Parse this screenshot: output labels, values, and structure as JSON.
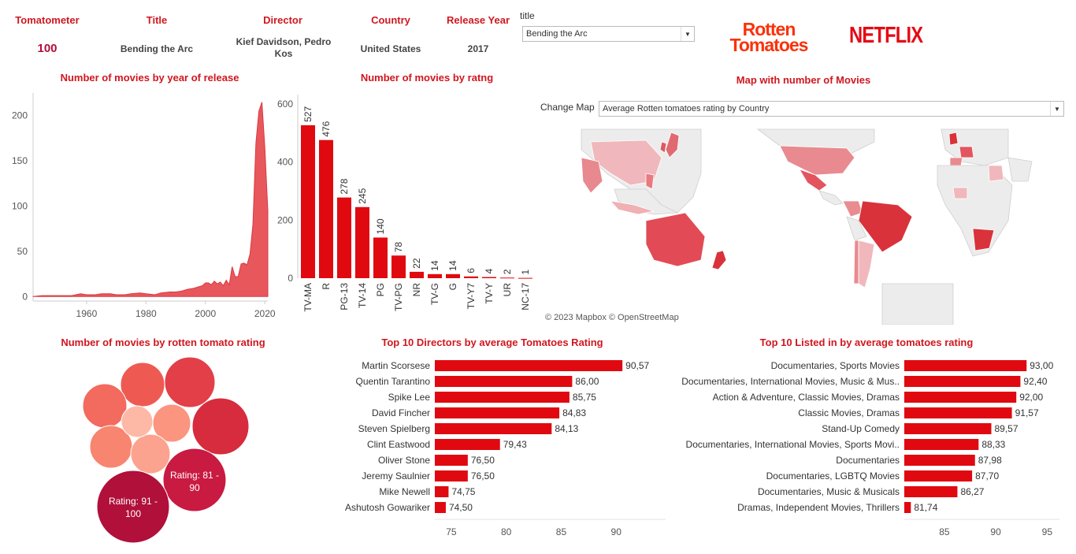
{
  "header": {
    "columns": [
      {
        "label": "Tomatometer",
        "value": "100"
      },
      {
        "label": "Title",
        "value": "Bending the Arc"
      },
      {
        "label": "Director",
        "value": "Kief Davidson, Pedro Kos"
      },
      {
        "label": "Country",
        "value": "United States"
      },
      {
        "label": "Release Year",
        "value": "2017"
      }
    ]
  },
  "title_filter": {
    "label": "title",
    "value": "Bending the Arc"
  },
  "logos": {
    "rotten_tomatoes": [
      "Rotten",
      "Tomatoes"
    ],
    "netflix": "NETFLIX"
  },
  "map": {
    "title": "Map with number of Movies",
    "change_label": "Change Map",
    "select_value": "Average Rotten tomatoes rating by Country",
    "credit": "© 2023 Mapbox © OpenStreetMap"
  },
  "colors": {
    "accent": "#d0171f",
    "bar": "#e00910",
    "area": "#e8575c",
    "map_low": "#f3c0c3",
    "map_high": "#d9323b"
  },
  "chart_data": [
    {
      "type": "area",
      "title": "Number of movies by year of release",
      "xlabel": "",
      "ylabel": "",
      "x_ticks": [
        1960,
        1980,
        2000,
        2020
      ],
      "y_ticks": [
        0,
        50,
        100,
        150,
        200
      ],
      "xlim": [
        1942,
        2021
      ],
      "ylim": [
        -5,
        225
      ],
      "x": [
        1942,
        1945,
        1950,
        1955,
        1958,
        1960,
        1963,
        1965,
        1968,
        1970,
        1973,
        1975,
        1978,
        1980,
        1983,
        1985,
        1988,
        1990,
        1992,
        1994,
        1996,
        1998,
        1999,
        2000,
        2001,
        2002,
        2003,
        2004,
        2005,
        2006,
        2007,
        2008,
        2009,
        2010,
        2011,
        2012,
        2013,
        2014,
        2015,
        2016,
        2017,
        2018,
        2019,
        2020,
        2021
      ],
      "y": [
        0,
        1,
        1,
        1,
        3,
        2,
        2,
        3,
        3,
        2,
        2,
        3,
        4,
        3,
        2,
        4,
        5,
        5,
        6,
        8,
        9,
        11,
        12,
        15,
        15,
        13,
        17,
        14,
        16,
        12,
        18,
        13,
        33,
        22,
        22,
        36,
        37,
        35,
        47,
        80,
        170,
        205,
        215,
        165,
        95
      ]
    },
    {
      "type": "bar",
      "title": "Number of movies by ratng",
      "categories": [
        "TV-MA",
        "R",
        "PG-13",
        "TV-14",
        "PG",
        "TV-PG",
        "NR",
        "TV-G",
        "G",
        "TV-Y7",
        "TV-Y",
        "UR",
        "NC-17"
      ],
      "values": [
        527,
        476,
        278,
        245,
        140,
        78,
        22,
        14,
        14,
        6,
        4,
        2,
        1
      ],
      "y_ticks": [
        0,
        200,
        400,
        600
      ],
      "ylim": [
        0,
        600
      ]
    },
    {
      "type": "bubble",
      "title": "Number of movies by rotten tomato rating",
      "bubbles": [
        {
          "label": "Rating: 91 - 100",
          "color": "#b0103a"
        },
        {
          "label": "Rating: 81 - 90",
          "color": "#c91a42"
        },
        {
          "label": "",
          "color": "#d62c3e"
        },
        {
          "label": "",
          "color": "#e23f48"
        },
        {
          "label": "",
          "color": "#ee5a52"
        },
        {
          "label": "",
          "color": "#f26b5e"
        },
        {
          "label": "",
          "color": "#f8856f"
        },
        {
          "label": "",
          "color": "#fb957f"
        },
        {
          "label": "",
          "color": "#fca38f"
        },
        {
          "label": "",
          "color": "#fdb9a6"
        }
      ]
    },
    {
      "type": "bar",
      "orientation": "horizontal",
      "title": "Top 10 Directors by average Tomatoes Rating",
      "categories": [
        "Martin Scorsese",
        "Quentin Tarantino",
        "Spike Lee",
        "David Fincher",
        "Steven Spielberg",
        "Clint Eastwood",
        "Oliver Stone",
        "Jeremy Saulnier",
        "Mike Newell",
        "Ashutosh Gowariker"
      ],
      "values": [
        90.57,
        86.0,
        85.75,
        84.83,
        84.13,
        79.43,
        76.5,
        76.5,
        74.75,
        74.5
      ],
      "value_labels": [
        "90,57",
        "86,00",
        "85,75",
        "84,83",
        "84,13",
        "79,43",
        "76,50",
        "76,50",
        "74,75",
        "74,50"
      ],
      "x_ticks": [
        75,
        80,
        85,
        90
      ],
      "xlim": [
        73.5,
        94.5
      ]
    },
    {
      "type": "bar",
      "orientation": "horizontal",
      "title": "Top 10 Listed in by average tomatoes rating",
      "categories": [
        "Documentaries, Sports Movies",
        "Documentaries, International Movies, Music & Mus..",
        "Action & Adventure, Classic Movies, Dramas",
        "Classic Movies, Dramas",
        "Stand-Up Comedy",
        "Documentaries, International Movies, Sports Movi..",
        "Documentaries",
        "Documentaries, LGBTQ Movies",
        "Documentaries, Music & Musicals",
        "Dramas, Independent Movies, Thrillers"
      ],
      "values": [
        93.0,
        92.4,
        92.0,
        91.57,
        89.57,
        88.33,
        87.98,
        87.7,
        86.27,
        81.74
      ],
      "value_labels": [
        "93,00",
        "92,40",
        "92,00",
        "91,57",
        "89,57",
        "88,33",
        "87,98",
        "87,70",
        "86,27",
        "81,74"
      ],
      "x_ticks": [
        85,
        90,
        95
      ],
      "xlim": [
        81.1,
        96.2
      ]
    }
  ]
}
